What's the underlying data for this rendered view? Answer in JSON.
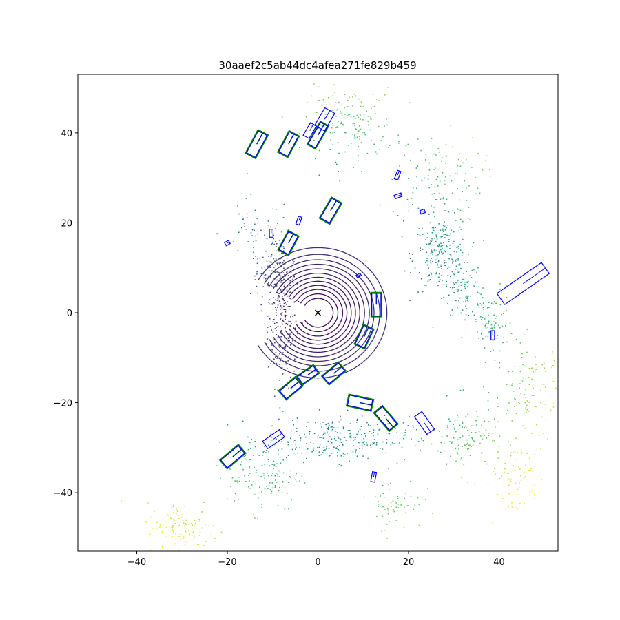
{
  "chart_data": {
    "type": "scatter",
    "title": "30aaef2c5ab44dc4afea271fe829b459",
    "xlabel": "",
    "ylabel": "",
    "xlim": [
      -53,
      53
    ],
    "ylim": [
      -53,
      53
    ],
    "x_ticks": [
      -40,
      -20,
      0,
      20,
      40
    ],
    "y_ticks": [
      -40,
      -20,
      0,
      20,
      40
    ],
    "x_tick_labels": [
      "−40",
      "−20",
      "0",
      "20",
      "40"
    ],
    "y_tick_labels": [
      "−40",
      "−20",
      "0",
      "20",
      "40"
    ],
    "grid": false,
    "legend": "none",
    "colormap": "viridis",
    "ego_marker": {
      "x": 0,
      "y": 0,
      "symbol": "x",
      "color": "#000000"
    },
    "ground_truth_color": "#008000",
    "prediction_color": "#0000ff",
    "ring_radii": [
      3.2,
      4.2,
      5.2,
      6.1,
      7.0,
      7.9,
      8.8,
      9.8,
      10.8,
      11.8,
      13.0,
      14.5
    ],
    "point_clusters": [
      {
        "cx": -8,
        "cy": 0,
        "sx": 1.6,
        "sy": 8.0,
        "n": 260,
        "c": 0.22
      },
      {
        "cx": -10,
        "cy": 9,
        "sx": 2.5,
        "sy": 2.5,
        "n": 90,
        "c": 0.25
      },
      {
        "cx": -14,
        "cy": 18,
        "sx": 4.0,
        "sy": 4.0,
        "n": 50,
        "c": 0.33
      },
      {
        "cx": 27,
        "cy": 13,
        "sx": 3.0,
        "sy": 4.0,
        "n": 220,
        "c": 0.5
      },
      {
        "cx": 32,
        "cy": 6,
        "sx": 2.0,
        "sy": 4.0,
        "n": 80,
        "c": 0.55
      },
      {
        "cx": 26,
        "cy": 30,
        "sx": 5.0,
        "sy": 5.0,
        "n": 120,
        "c": 0.62
      },
      {
        "cx": 38,
        "cy": -2,
        "sx": 2.5,
        "sy": 4.0,
        "n": 90,
        "c": 0.6
      },
      {
        "cx": 7,
        "cy": 42,
        "sx": 5.0,
        "sy": 4.0,
        "n": 160,
        "c": 0.85
      },
      {
        "cx": 47,
        "cy": -18,
        "sx": 4.0,
        "sy": 6.0,
        "n": 130,
        "c": 0.95
      },
      {
        "cx": 33,
        "cy": -28,
        "sx": 4.0,
        "sy": 4.0,
        "n": 120,
        "c": 0.78
      },
      {
        "cx": 4,
        "cy": -28,
        "sx": 8.0,
        "sy": 2.5,
        "n": 260,
        "c": 0.5
      },
      {
        "cx": -12,
        "cy": -36,
        "sx": 4.0,
        "sy": 4.0,
        "n": 140,
        "c": 0.72
      },
      {
        "cx": -30,
        "cy": -48,
        "sx": 4.0,
        "sy": 3.0,
        "n": 110,
        "c": 0.97
      },
      {
        "cx": 17,
        "cy": -42,
        "sx": 3.0,
        "sy": 3.0,
        "n": 60,
        "c": 0.82
      },
      {
        "cx": 43,
        "cy": -37,
        "sx": 3.0,
        "sy": 4.0,
        "n": 60,
        "c": 0.93
      }
    ],
    "boxes": [
      {
        "cx": -13.5,
        "cy": 37.5,
        "l": 5.5,
        "w": 2.2,
        "yaw": 62,
        "gt": true,
        "pred": true
      },
      {
        "cx": -6.5,
        "cy": 37.5,
        "l": 5.0,
        "w": 2.2,
        "yaw": 62,
        "gt": true,
        "pred": true
      },
      {
        "cx": -1.8,
        "cy": 40.5,
        "l": 3.2,
        "w": 1.5,
        "yaw": 60,
        "gt": false,
        "pred": true
      },
      {
        "cx": 0.0,
        "cy": 39.5,
        "l": 5.5,
        "w": 1.8,
        "yaw": 60,
        "gt": true,
        "pred": true
      },
      {
        "cx": 1.5,
        "cy": 43.0,
        "l": 4.5,
        "w": 2.5,
        "yaw": 60,
        "gt": false,
        "pred": true
      },
      {
        "cx": 2.8,
        "cy": 22.7,
        "l": 5.0,
        "w": 2.3,
        "yaw": 60,
        "gt": true,
        "pred": true
      },
      {
        "cx": -6.5,
        "cy": 15.5,
        "l": 4.5,
        "w": 2.3,
        "yaw": 62,
        "gt": true,
        "pred": true
      },
      {
        "cx": 12.9,
        "cy": 1.8,
        "l": 5.0,
        "w": 2.0,
        "yaw": 90,
        "gt": true,
        "pred": true
      },
      {
        "cx": 10.2,
        "cy": -5.3,
        "l": 4.5,
        "w": 2.2,
        "yaw": 65,
        "gt": true,
        "pred": true
      },
      {
        "cx": 3.5,
        "cy": -13.5,
        "l": 4.5,
        "w": 2.2,
        "yaw": 40,
        "gt": true,
        "pred": true
      },
      {
        "cx": -2.2,
        "cy": -13.8,
        "l": 4.2,
        "w": 2.0,
        "yaw": 35,
        "gt": true,
        "pred": true
      },
      {
        "cx": -6.0,
        "cy": -16.8,
        "l": 4.5,
        "w": 2.3,
        "yaw": 40,
        "gt": true,
        "pred": true
      },
      {
        "cx": 9.3,
        "cy": -20.0,
        "l": 5.2,
        "w": 2.3,
        "yaw": -12,
        "gt": true,
        "pred": true
      },
      {
        "cx": 15.0,
        "cy": -23.5,
        "l": 5.0,
        "w": 2.2,
        "yaw": -50,
        "gt": true,
        "pred": true
      },
      {
        "cx": 23.5,
        "cy": -24.5,
        "l": 4.8,
        "w": 2.0,
        "yaw": -55,
        "gt": false,
        "pred": true
      },
      {
        "cx": -9.8,
        "cy": -28.1,
        "l": 4.5,
        "w": 2.0,
        "yaw": 35,
        "gt": false,
        "pred": true
      },
      {
        "cx": -18.8,
        "cy": -32.0,
        "l": 5.0,
        "w": 2.2,
        "yaw": 40,
        "gt": true,
        "pred": true
      },
      {
        "cx": 12.3,
        "cy": -36.5,
        "l": 2.2,
        "w": 0.9,
        "yaw": 80,
        "gt": false,
        "pred": true
      },
      {
        "cx": 45.3,
        "cy": 6.5,
        "l": 12.0,
        "w": 3.0,
        "yaw": 35,
        "gt": false,
        "pred": true
      },
      {
        "cx": 38.6,
        "cy": -5.0,
        "l": 2.0,
        "w": 0.8,
        "yaw": 90,
        "gt": false,
        "pred": true
      },
      {
        "cx": 17.6,
        "cy": 30.6,
        "l": 2.0,
        "w": 0.8,
        "yaw": 70,
        "gt": false,
        "pred": true
      },
      {
        "cx": 17.7,
        "cy": 26.0,
        "l": 1.6,
        "w": 0.8,
        "yaw": 20,
        "gt": false,
        "pred": true
      },
      {
        "cx": 23.1,
        "cy": 22.5,
        "l": 1.0,
        "w": 0.8,
        "yaw": 20,
        "gt": false,
        "pred": true
      },
      {
        "cx": -10.3,
        "cy": 17.7,
        "l": 1.8,
        "w": 0.8,
        "yaw": 90,
        "gt": false,
        "pred": true
      },
      {
        "cx": -4.2,
        "cy": 20.5,
        "l": 1.8,
        "w": 0.8,
        "yaw": 70,
        "gt": false,
        "pred": true
      },
      {
        "cx": -20.0,
        "cy": 15.5,
        "l": 1.0,
        "w": 0.8,
        "yaw": 30,
        "gt": false,
        "pred": true
      },
      {
        "cx": 9.0,
        "cy": 8.3,
        "l": 1.0,
        "w": 0.6,
        "yaw": 30,
        "gt": false,
        "pred": true
      }
    ]
  }
}
